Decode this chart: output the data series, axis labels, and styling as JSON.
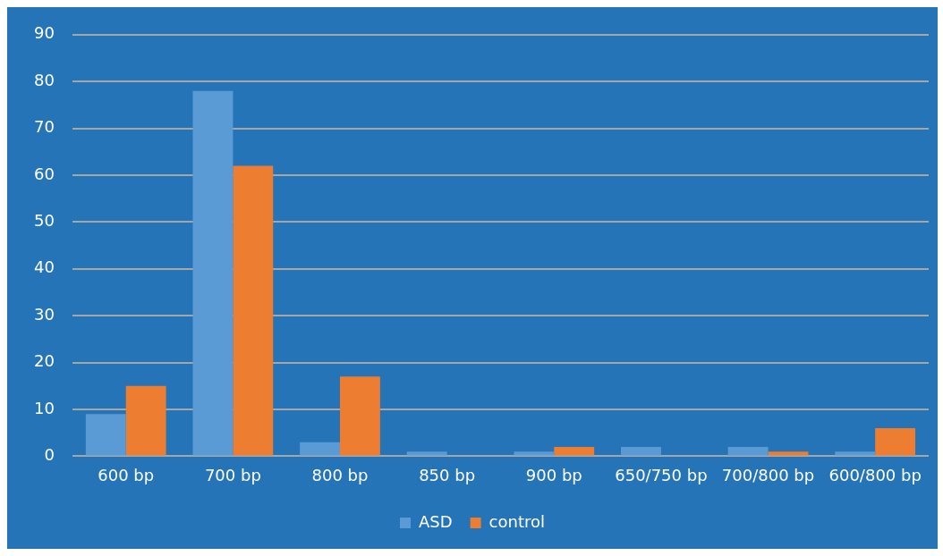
{
  "chart_data": {
    "type": "bar",
    "categories": [
      "600 bp",
      "700 bp",
      "800 bp",
      "850 bp",
      "900 bp",
      "650/750 bp",
      "700/800 bp",
      "600/800 bp"
    ],
    "series": [
      {
        "name": "ASD",
        "color": "#5b9bd5",
        "values": [
          9,
          78,
          3,
          1,
          1,
          2,
          2,
          1
        ]
      },
      {
        "name": "control",
        "color": "#ed7d31",
        "values": [
          15,
          62,
          17,
          0,
          2,
          0,
          1,
          6
        ]
      }
    ],
    "ylim": [
      0,
      90
    ],
    "yticks": [
      0,
      10,
      20,
      30,
      40,
      50,
      60,
      70,
      80,
      90
    ],
    "grid": "y",
    "legend": "bottom"
  }
}
